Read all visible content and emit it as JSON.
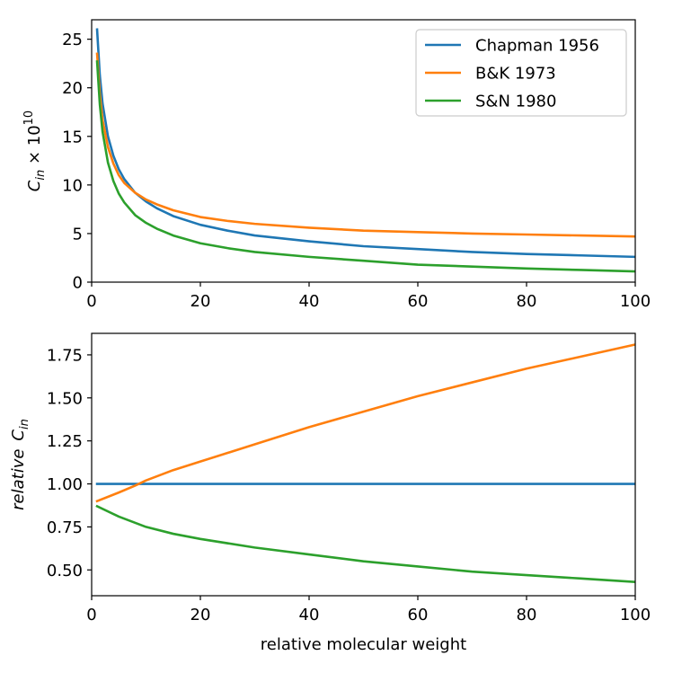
{
  "chart_data": [
    {
      "type": "line",
      "title": "",
      "xlabel": "",
      "ylabel": "C_in × 10^10",
      "ylabel_parts": {
        "base": "C",
        "sub": "in",
        "times": " × 10",
        "sup": "10"
      },
      "xlim": [
        0,
        100
      ],
      "ylim": [
        0,
        27
      ],
      "xticks": [
        0,
        20,
        40,
        60,
        80,
        100
      ],
      "yticks": [
        0,
        5,
        10,
        15,
        20,
        25
      ],
      "legend": "top-right",
      "grid": false,
      "series": [
        {
          "name": "Chapman 1956",
          "color": "#1f77b4",
          "x": [
            1,
            1.5,
            2,
            3,
            4,
            5,
            6,
            8,
            10,
            12,
            15,
            20,
            25,
            30,
            40,
            50,
            60,
            70,
            80,
            90,
            100
          ],
          "y": [
            26.0,
            21.3,
            18.4,
            15.0,
            13.0,
            11.6,
            10.6,
            9.2,
            8.3,
            7.6,
            6.8,
            5.9,
            5.3,
            4.8,
            4.2,
            3.7,
            3.4,
            3.1,
            2.9,
            2.75,
            2.6
          ]
        },
        {
          "name": "B&K 1973",
          "color": "#ff7f0e",
          "x": [
            1,
            1.5,
            2,
            3,
            4,
            5,
            6,
            8,
            10,
            12,
            15,
            20,
            25,
            30,
            40,
            50,
            60,
            70,
            80,
            90,
            100
          ],
          "y": [
            23.5,
            19.4,
            16.7,
            13.9,
            12.2,
            11.0,
            10.2,
            9.2,
            8.5,
            8.0,
            7.4,
            6.7,
            6.3,
            6.0,
            5.6,
            5.3,
            5.15,
            5.0,
            4.9,
            4.8,
            4.7
          ]
        },
        {
          "name": "S&N 1980",
          "color": "#2ca02c",
          "x": [
            1,
            1.5,
            2,
            3,
            4,
            5,
            6,
            8,
            10,
            12,
            15,
            20,
            25,
            30,
            40,
            50,
            60,
            70,
            80,
            90,
            100
          ],
          "y": [
            22.7,
            18.3,
            15.5,
            12.3,
            10.4,
            9.1,
            8.2,
            6.9,
            6.1,
            5.5,
            4.8,
            4.0,
            3.5,
            3.1,
            2.6,
            2.2,
            1.8,
            1.6,
            1.4,
            1.25,
            1.1
          ]
        }
      ]
    },
    {
      "type": "line",
      "title": "",
      "xlabel": "relative molecular weight",
      "ylabel": "relative  C_in",
      "ylabel_parts": {
        "word": "relative",
        "base": "C",
        "sub": "in"
      },
      "xlim": [
        0,
        100
      ],
      "ylim": [
        0.35,
        1.875
      ],
      "xticks": [
        0,
        20,
        40,
        60,
        80,
        100
      ],
      "yticks": [
        0.5,
        0.75,
        1.0,
        1.25,
        1.5,
        1.75
      ],
      "ytick_labels": [
        "0.50",
        "0.75",
        "1.00",
        "1.25",
        "1.50",
        "1.75"
      ],
      "legend": "none",
      "grid": false,
      "series": [
        {
          "color": "#1f77b4",
          "x": [
            1,
            100
          ],
          "y": [
            1.0,
            1.0
          ]
        },
        {
          "color": "#ff7f0e",
          "x": [
            1,
            5,
            8,
            10,
            15,
            20,
            30,
            40,
            50,
            60,
            70,
            80,
            90,
            100
          ],
          "y": [
            0.9,
            0.95,
            0.99,
            1.02,
            1.08,
            1.13,
            1.23,
            1.33,
            1.42,
            1.51,
            1.59,
            1.67,
            1.74,
            1.81
          ]
        },
        {
          "color": "#2ca02c",
          "x": [
            1,
            5,
            10,
            15,
            20,
            30,
            40,
            50,
            60,
            70,
            80,
            90,
            100
          ],
          "y": [
            0.87,
            0.81,
            0.75,
            0.71,
            0.68,
            0.63,
            0.59,
            0.55,
            0.52,
            0.49,
            0.47,
            0.45,
            0.43
          ]
        }
      ]
    }
  ]
}
